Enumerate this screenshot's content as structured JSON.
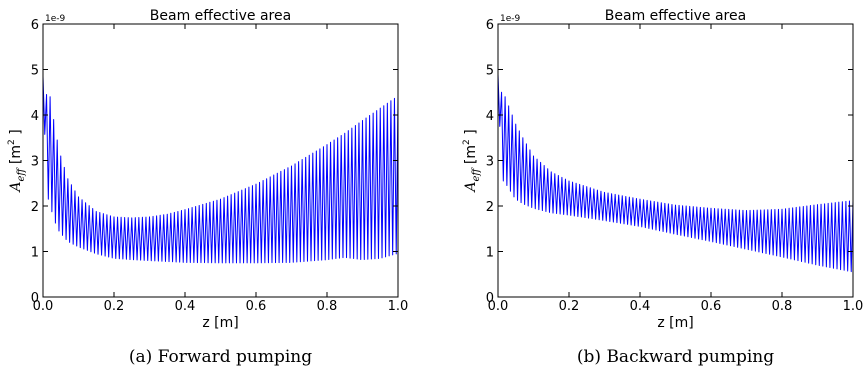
{
  "colors": {
    "line": "#0000ff",
    "axes": "#000000",
    "background": "#ffffff"
  },
  "chart_data": [
    {
      "type": "line",
      "title": "Beam effective area",
      "xlabel": "z [m]",
      "ylabel": "A_eff [m^2 ]",
      "ylabel_parts": {
        "main": "A",
        "sub": "eff",
        "unit_open": " [m",
        "sup": "2",
        "unit_close": " ]"
      },
      "y_scale_label": "1e-9",
      "xlim": [
        0.0,
        1.0
      ],
      "ylim": [
        0,
        6
      ],
      "x_ticks": [
        "0.0",
        "0.2",
        "0.4",
        "0.6",
        "0.8",
        "1.0"
      ],
      "y_ticks": [
        "0",
        "1",
        "2",
        "3",
        "4",
        "5",
        "6"
      ],
      "grid": false,
      "caption": "(a) Forward pumping",
      "series": [
        {
          "oscillating": true,
          "cycles": 100,
          "x": [
            0.0,
            0.01,
            0.02,
            0.03,
            0.04,
            0.05,
            0.07,
            0.1,
            0.15,
            0.2,
            0.25,
            0.3,
            0.35,
            0.4,
            0.5,
            0.6,
            0.7,
            0.8,
            0.85,
            0.9,
            0.95,
            1.0
          ],
          "upper": [
            4.85,
            4.45,
            4.4,
            3.9,
            3.45,
            3.1,
            2.6,
            2.2,
            1.88,
            1.76,
            1.74,
            1.76,
            1.82,
            1.92,
            2.15,
            2.48,
            2.88,
            3.35,
            3.6,
            3.88,
            4.15,
            4.42
          ],
          "lower": [
            4.85,
            2.3,
            2.0,
            1.75,
            1.5,
            1.4,
            1.22,
            1.1,
            0.95,
            0.85,
            0.82,
            0.8,
            0.78,
            0.76,
            0.75,
            0.75,
            0.76,
            0.82,
            0.87,
            0.82,
            0.85,
            0.96
          ]
        }
      ]
    },
    {
      "type": "line",
      "title": "Beam effective area",
      "xlabel": "z [m]",
      "ylabel": "A_eff [m^2 ]",
      "ylabel_parts": {
        "main": "A",
        "sub": "eff",
        "unit_open": " [m",
        "sup": "2",
        "unit_close": " ]"
      },
      "y_scale_label": "1e-9",
      "xlim": [
        0.0,
        1.0
      ],
      "ylim": [
        0,
        6
      ],
      "x_ticks": [
        "0.0",
        "0.2",
        "0.4",
        "0.6",
        "0.8",
        "1.0"
      ],
      "y_ticks": [
        "0",
        "1",
        "2",
        "3",
        "4",
        "5",
        "6"
      ],
      "grid": false,
      "caption": "(b) Backward pumping",
      "series": [
        {
          "oscillating": true,
          "cycles": 100,
          "x": [
            0.0,
            0.01,
            0.02,
            0.03,
            0.04,
            0.05,
            0.07,
            0.1,
            0.15,
            0.2,
            0.3,
            0.4,
            0.5,
            0.6,
            0.7,
            0.8,
            0.9,
            1.0
          ],
          "upper": [
            4.9,
            4.5,
            4.4,
            4.2,
            4.0,
            3.8,
            3.5,
            3.1,
            2.75,
            2.55,
            2.3,
            2.15,
            2.02,
            1.95,
            1.9,
            1.93,
            2.03,
            2.12
          ],
          "lower": [
            4.9,
            2.6,
            2.5,
            2.4,
            2.25,
            2.15,
            2.05,
            1.95,
            1.85,
            1.8,
            1.68,
            1.55,
            1.38,
            1.22,
            1.05,
            0.88,
            0.7,
            0.55
          ]
        }
      ]
    }
  ]
}
